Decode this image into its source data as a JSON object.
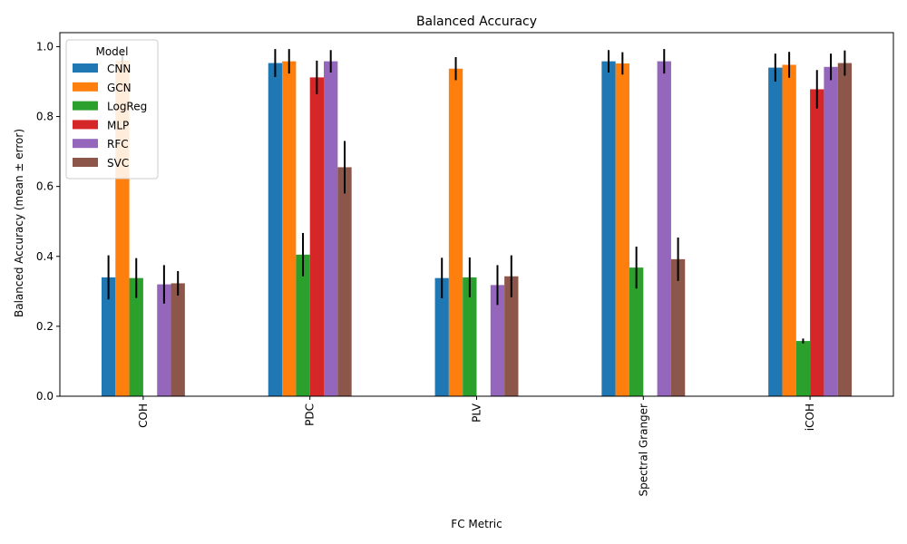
{
  "chart_data": {
    "type": "bar",
    "title": "Balanced Accuracy",
    "xlabel": "FC Metric",
    "ylabel": "Balanced Accuracy (mean ± error)",
    "ylim": [
      0,
      1.04
    ],
    "yticks": [
      "0.0",
      "0.2",
      "0.4",
      "0.6",
      "0.8",
      "1.0"
    ],
    "categories": [
      "COH",
      "PDC",
      "PLV",
      "Spectral Granger",
      "iCOH"
    ],
    "legend": {
      "title": "Model",
      "position": "top-left"
    },
    "series": [
      {
        "name": "CNN",
        "color": "#1f77b4",
        "values": [
          0.34,
          0.953,
          0.338,
          0.958,
          0.94
        ],
        "errors": [
          0.063,
          0.04,
          0.058,
          0.032,
          0.04
        ]
      },
      {
        "name": "GCN",
        "color": "#ff7f0e",
        "values": [
          0.96,
          0.958,
          0.937,
          0.952,
          0.948
        ],
        "errors": [
          0.03,
          0.035,
          0.033,
          0.032,
          0.037
        ]
      },
      {
        "name": "LogReg",
        "color": "#2ca02c",
        "values": [
          0.338,
          0.405,
          0.34,
          0.368,
          0.158
        ],
        "errors": [
          0.057,
          0.062,
          0.057,
          0.06,
          0.007
        ]
      },
      {
        "name": "MLP",
        "color": "#d62728",
        "values": [
          null,
          0.912,
          null,
          null,
          0.878
        ],
        "errors": [
          null,
          0.048,
          null,
          null,
          0.055
        ]
      },
      {
        "name": "RFC",
        "color": "#9467bd",
        "values": [
          0.32,
          0.958,
          0.318,
          0.958,
          0.942
        ],
        "errors": [
          0.055,
          0.032,
          0.057,
          0.035,
          0.038
        ]
      },
      {
        "name": "SVC",
        "color": "#8c564b",
        "values": [
          0.323,
          0.655,
          0.343,
          0.392,
          0.953
        ],
        "errors": [
          0.035,
          0.075,
          0.06,
          0.062,
          0.036
        ]
      }
    ],
    "grid": false
  }
}
